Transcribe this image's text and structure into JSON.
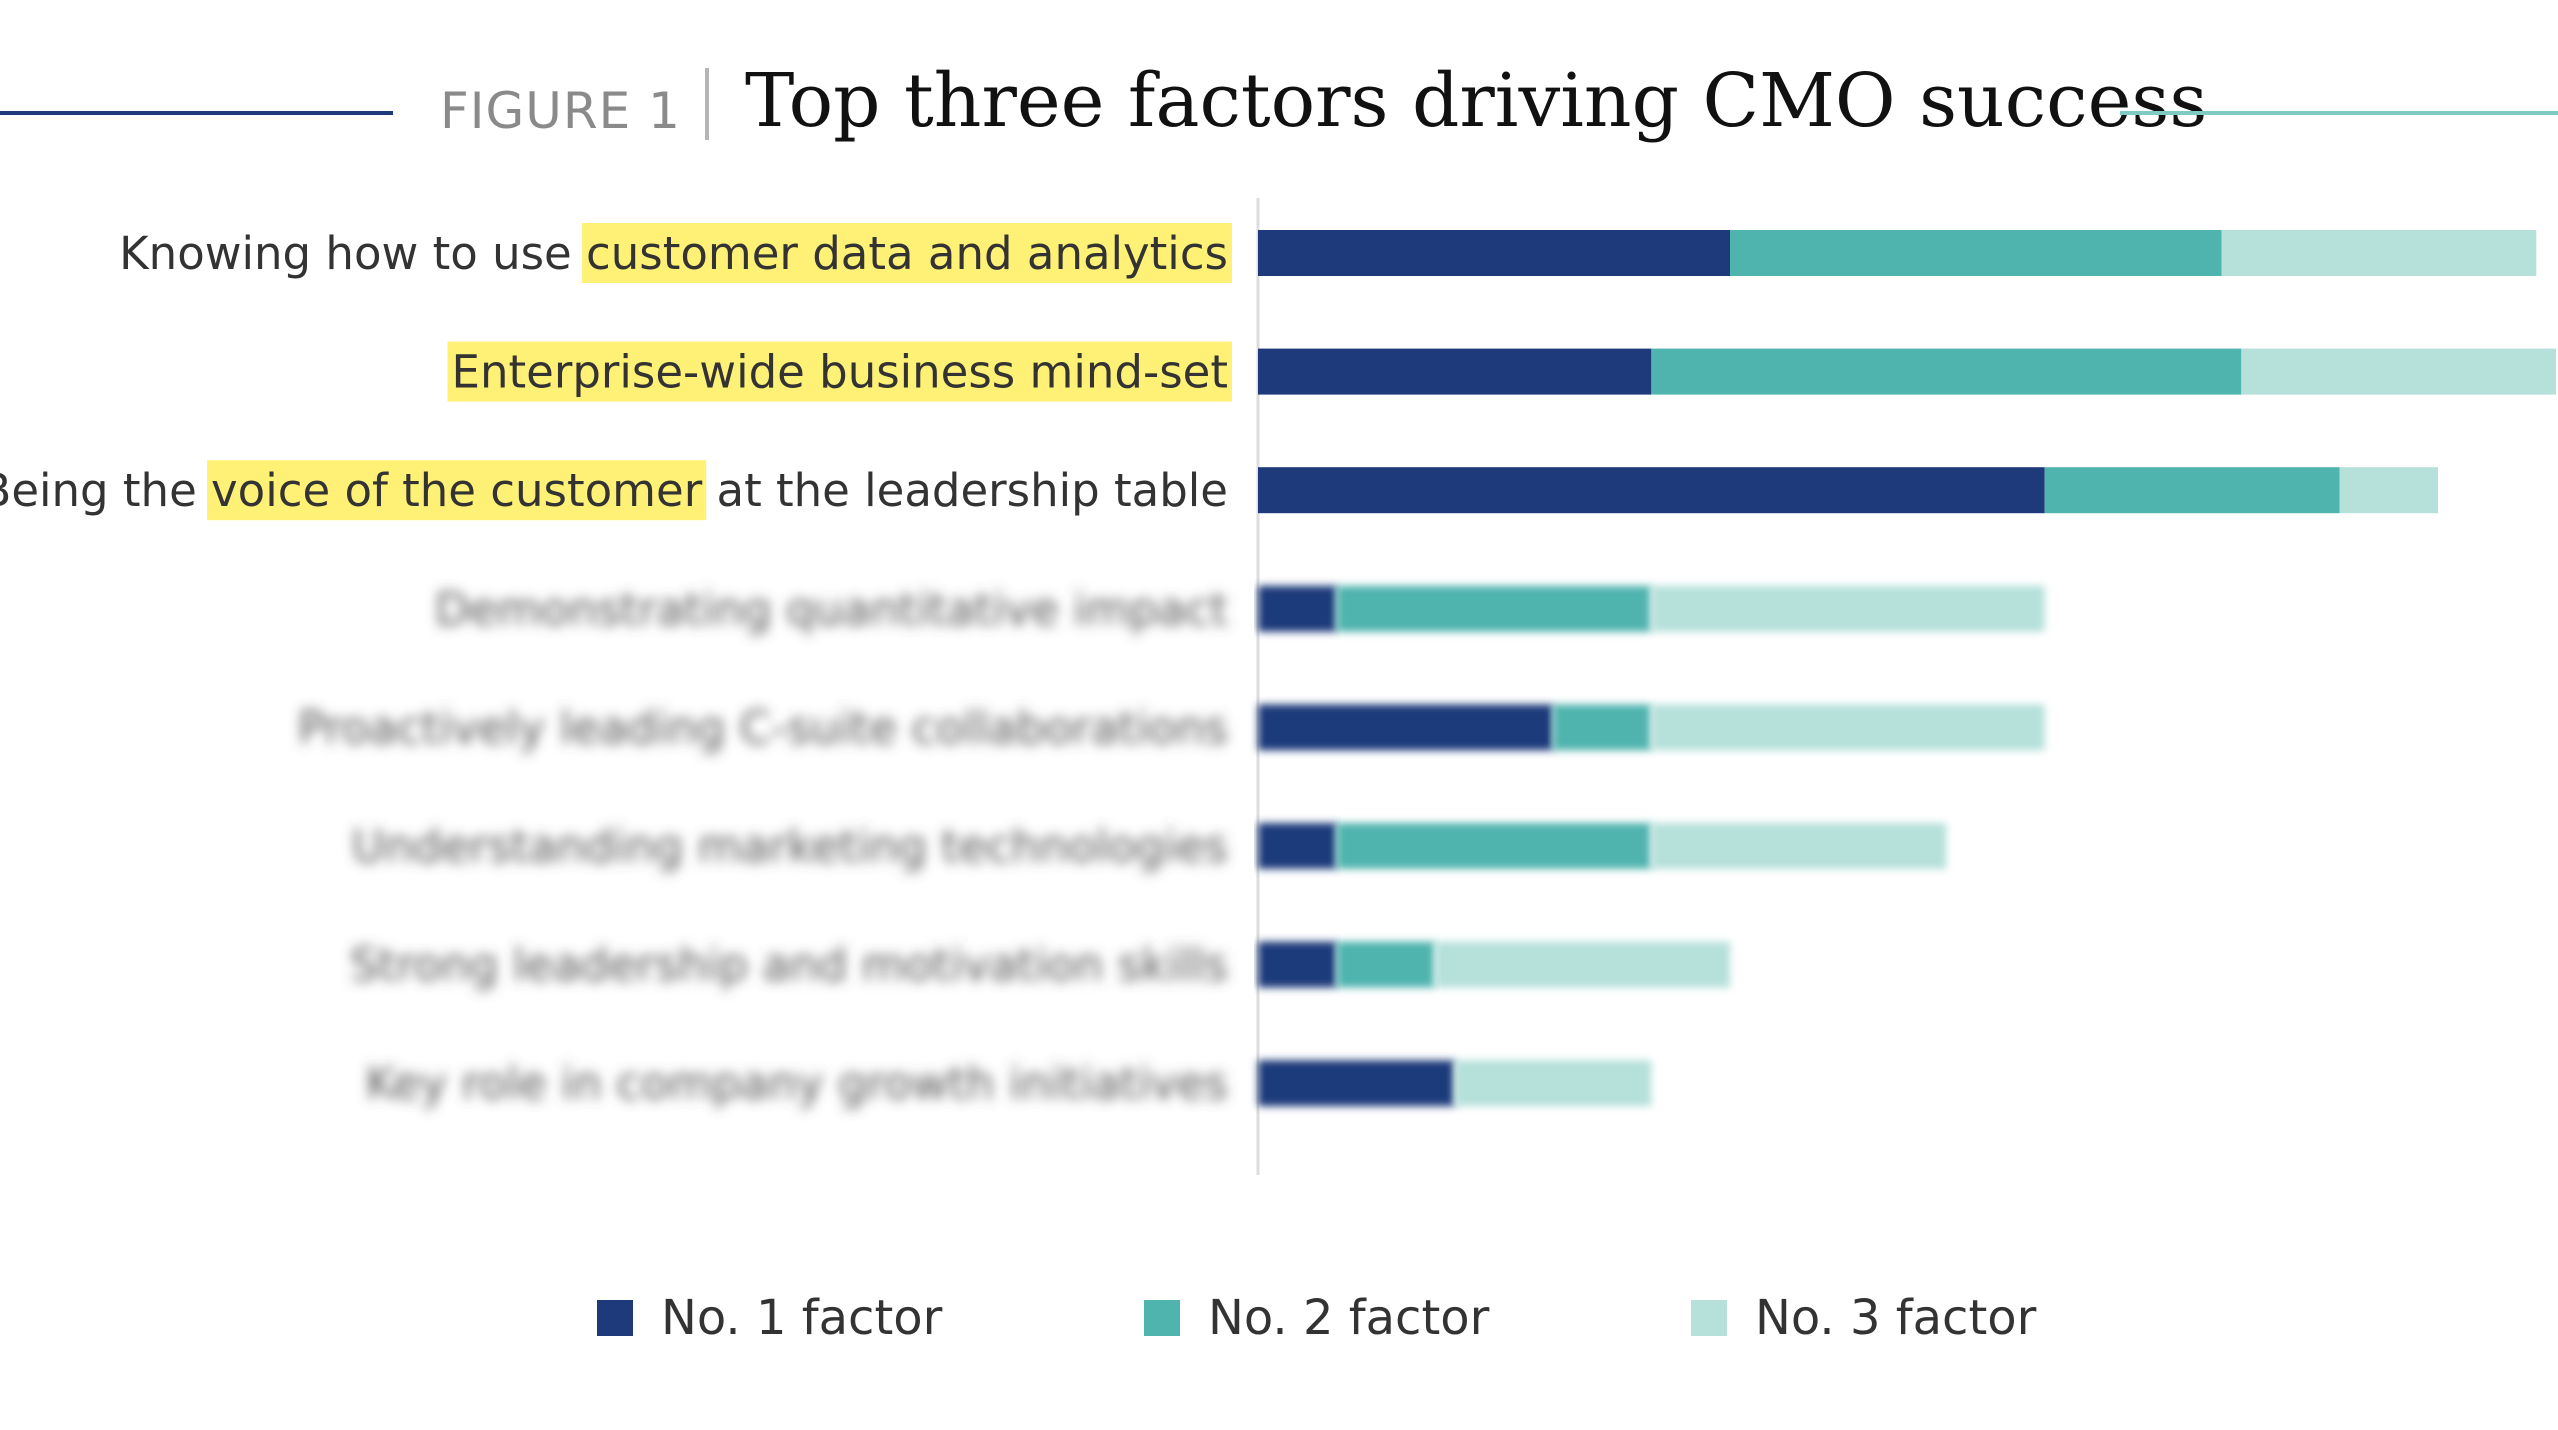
{
  "header": {
    "figure_label": "FIGURE 1",
    "title": "Top three factors driving CMO success"
  },
  "colors": {
    "no1": "#1e3a7a",
    "no2": "#4fb3ae",
    "no3": "#b6e0da",
    "highlight": "#fff176",
    "rule_left": "#1e3a7a",
    "rule_right": "#7ecbc2"
  },
  "chart_data": {
    "type": "bar",
    "orientation": "horizontal",
    "stacked": true,
    "title": "Top three factors driving CMO success",
    "categories": [
      "Knowing how to use customer data and analytics",
      "Enterprise-wide business mind-set",
      "Being the voice of the customer at the leadership table",
      "Demonstrating quantitative impact",
      "Proactively leading C-suite collaborations",
      "Understanding marketing technologies",
      "Strong leadership and motivation skills",
      "Key role in company growth initiatives"
    ],
    "highlights": [
      [
        "customer data and analytics"
      ],
      [
        "Enterprise-wide business mind-set"
      ],
      [
        "voice of the customer"
      ],
      [],
      [],
      [],
      [],
      []
    ],
    "blurred_from_index": 3,
    "series": [
      {
        "name": "No. 1 factor",
        "values": [
          24,
          20,
          40,
          4,
          15,
          4,
          4,
          10
        ]
      },
      {
        "name": "No. 2 factor",
        "values": [
          25,
          30,
          15,
          16,
          5,
          16,
          5,
          0
        ]
      },
      {
        "name": "No. 3 factor",
        "values": [
          16,
          16,
          5,
          20,
          20,
          15,
          15,
          10
        ]
      }
    ],
    "xlim": [
      0,
      66
    ],
    "legend_position": "bottom"
  }
}
